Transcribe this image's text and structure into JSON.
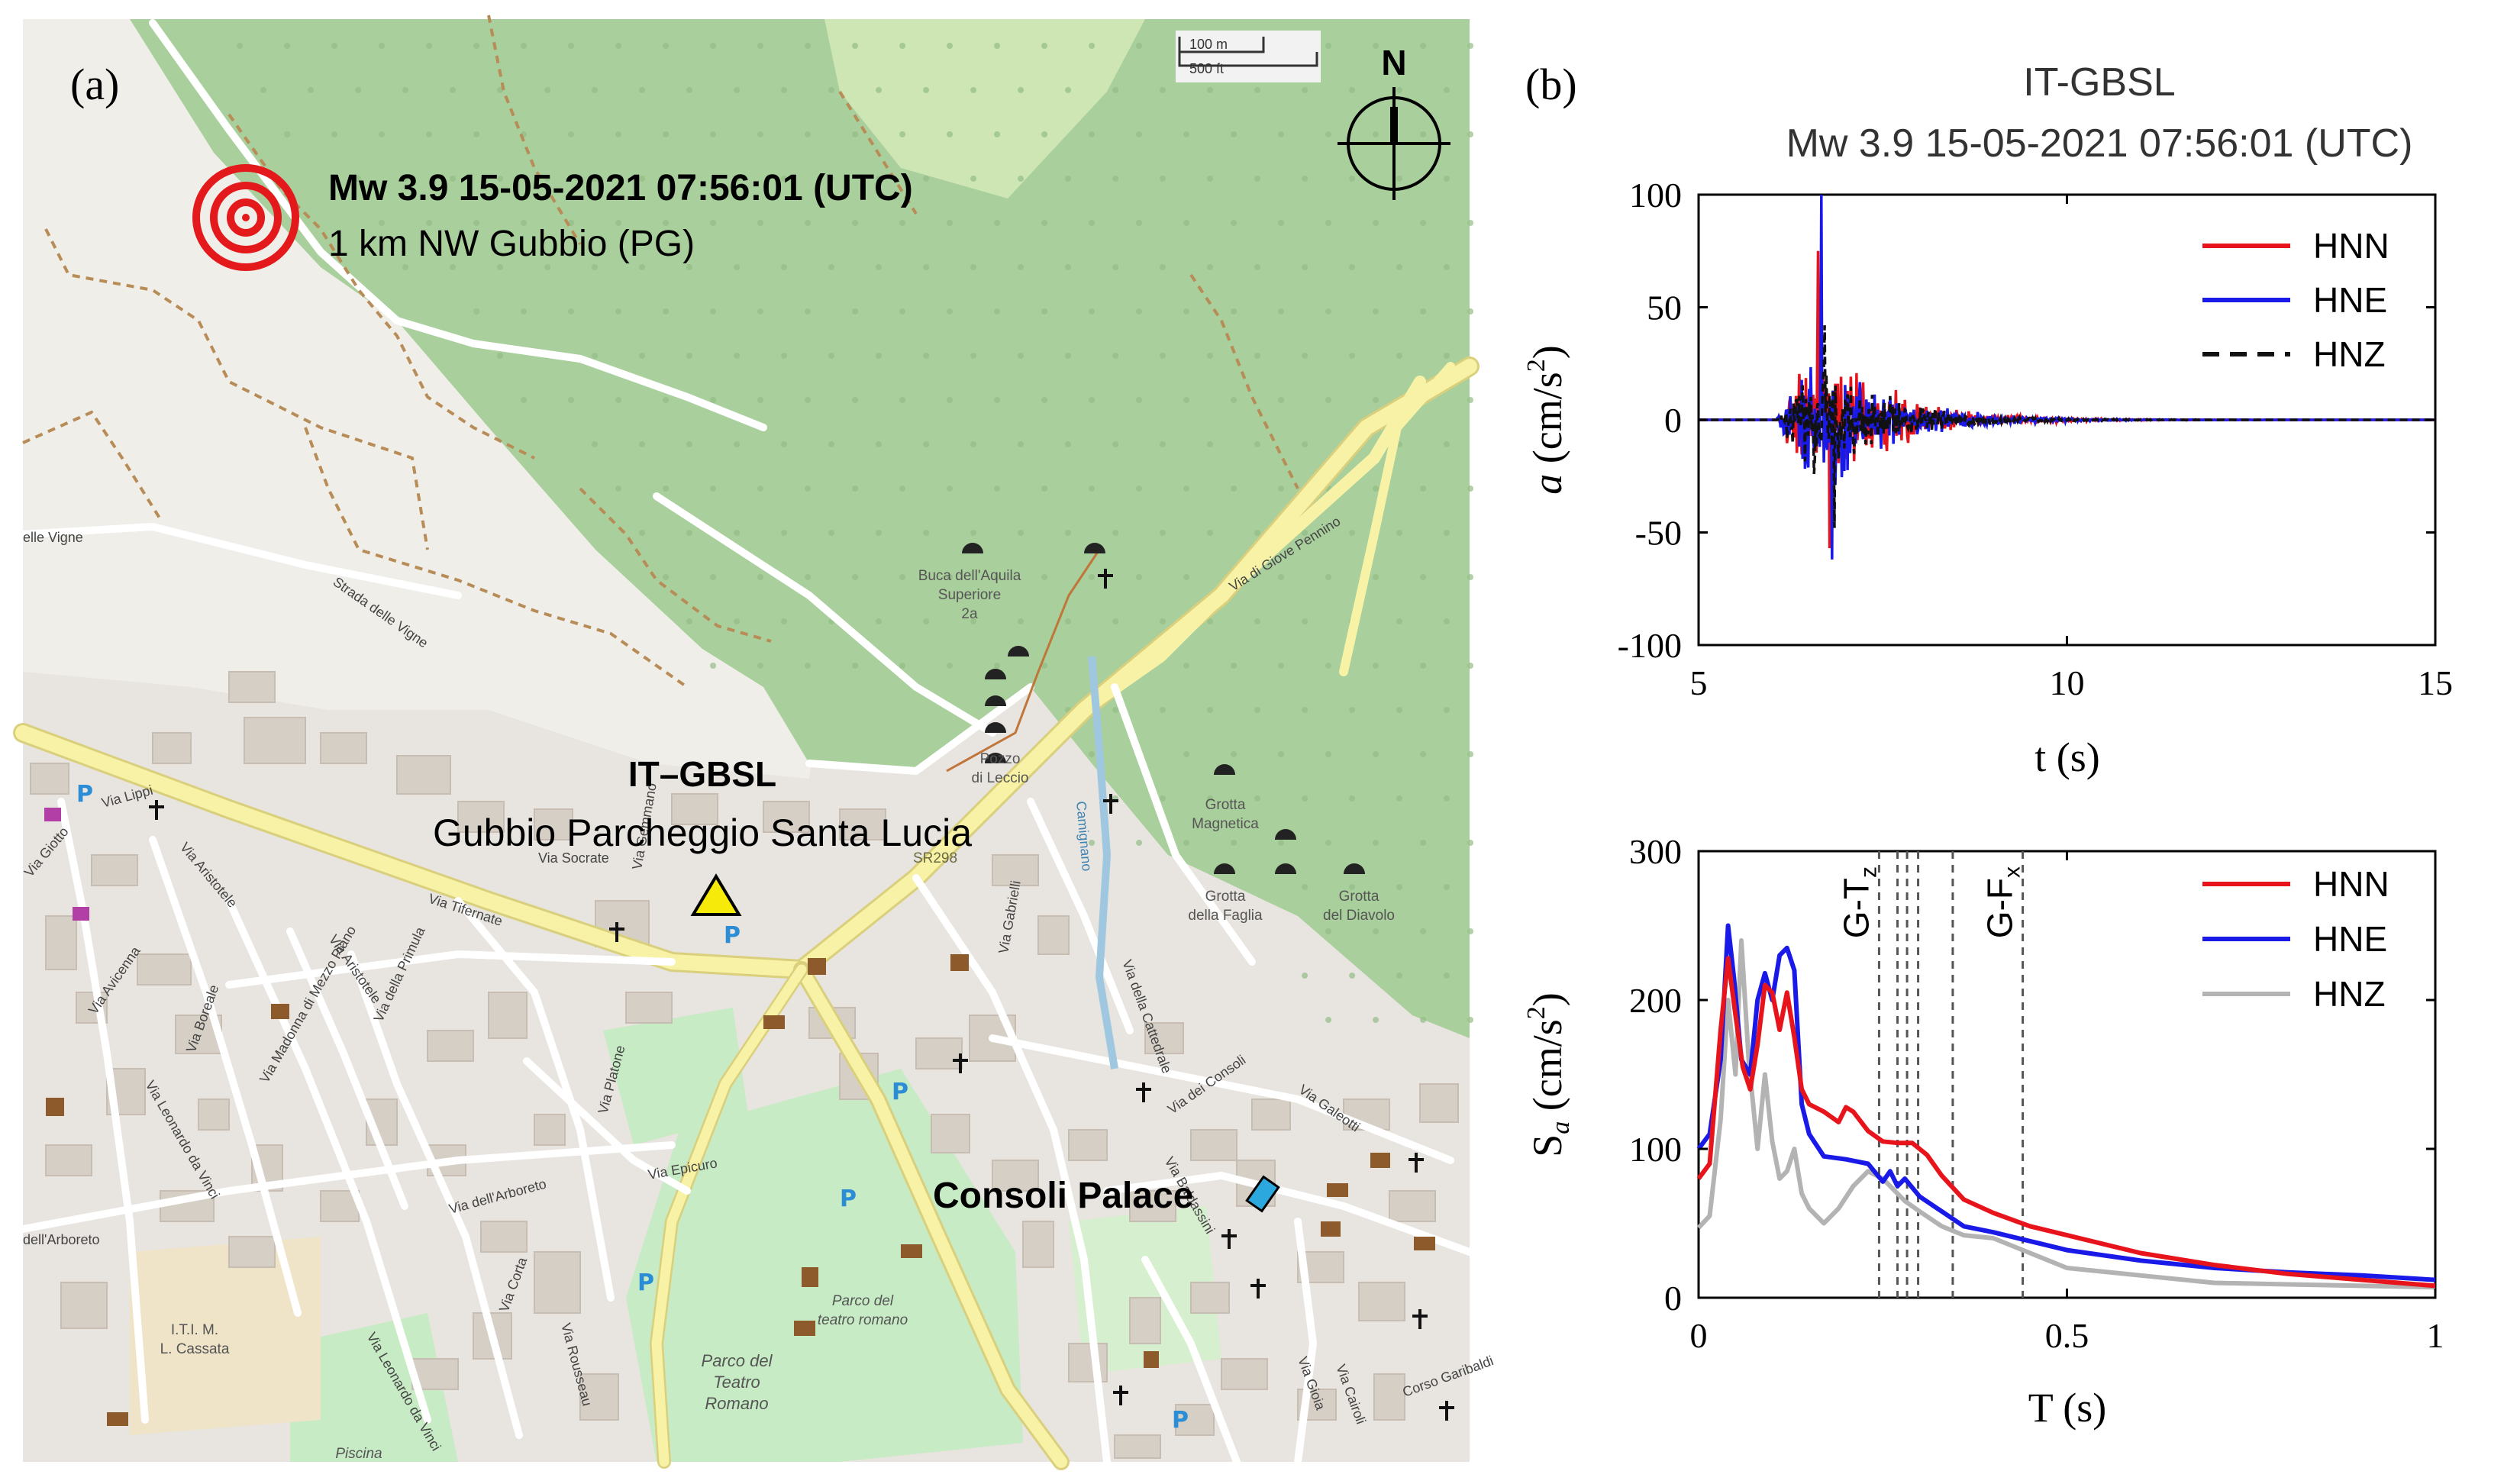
{
  "panel_a": {
    "label": "(a)",
    "event_title": "Mw 3.9 15-05-2021 07:56:01 (UTC)",
    "event_location": "1 km NW Gubbio (PG)",
    "station_code": "IT–GBSL",
    "station_name": "Gubbio Parcheggio Santa Lucia",
    "palace_label": "Consoli Palace",
    "north_label": "N",
    "scale_m": "100 m",
    "scale_ft": "500 ft",
    "colors": {
      "epicenter": "#e3191b",
      "station": "#f5ea0a",
      "palace": "#2ba8de",
      "forest": "#a9cf9c",
      "park": "#c7ebc4",
      "urban": "#e8e4df"
    },
    "place_names": [
      "Buca dell'Aquila",
      "Superiore",
      "2a",
      "Pozzo",
      "di Leccio",
      "Grotta",
      "Magnetica",
      "Grotta",
      "della Faglia",
      "Grotta",
      "del Diavolo",
      "Parco del",
      "Teatro",
      "Romano",
      "Parco del",
      "teatro romano",
      "I.T.I. M.",
      "L. Cassata",
      "Piscina",
      "SR298"
    ],
    "street_names": [
      "Via di Giove Pennino",
      "Strada delle Vigne",
      "elle Vigne",
      "Via Tifernate",
      "Via Lippi",
      "Via Giotto",
      "Via Aristotele",
      "Via Avicenna",
      "Via Boreale",
      "Via Leonardo da Vinci",
      "Via Madonna di Mezzo Piano",
      "Via Aristotele",
      "Via della Primula",
      "Via Platone",
      "Via Epicuro",
      "Via dell'Arboreto",
      "Via Corta",
      "Via Rousseau",
      "Via Leonardo da Vinci",
      "Via Socrate",
      "Via Gabrielli",
      "Via della Cattedrale",
      "Via dei Consoli",
      "Via Galeotti",
      "Via Baldassini",
      "Via Gioia",
      "Via Cairoli",
      "Corso Garibaldi",
      "Camignano",
      "dell'Arboreto",
      "Via Gemmano"
    ]
  },
  "panel_b": {
    "label": "(b)",
    "title_line1": "IT-GBSL",
    "title_line2": "Mw 3.9 15-05-2021 07:56:01 (UTC)"
  },
  "chart_data": [
    {
      "type": "line",
      "title": "IT-GBSL Mw 3.9 15-05-2021 07:56:01 (UTC)",
      "xlabel": "t (s)",
      "ylabel": "a (cm/s²)",
      "ylabel_parts": {
        "a": "a",
        "unit_open": "(cm/s",
        "exp": "2",
        "unit_close": ")"
      },
      "xlim": [
        5,
        15
      ],
      "ylim": [
        -100,
        100
      ],
      "xticks": [
        5,
        10,
        15
      ],
      "yticks": [
        -100,
        -50,
        0,
        50,
        100
      ],
      "legend_position": "top-right",
      "series": [
        {
          "name": "HNN",
          "color": "#e8141c",
          "dash": "solid",
          "peak": 75,
          "trough": -57,
          "seed": 11,
          "amp": 26
        },
        {
          "name": "HNE",
          "color": "#1a1ae8",
          "dash": "solid",
          "peak": 100,
          "trough": -62,
          "seed": 23,
          "amp": 26
        },
        {
          "name": "HNZ",
          "color": "#111111",
          "dash": "dashed",
          "peak": 42,
          "trough": -48,
          "seed": 37,
          "amp": 20
        }
      ]
    },
    {
      "type": "line",
      "title": "",
      "xlabel": "T (s)",
      "ylabel": "S_a (cm/s²)",
      "ylabel_parts": {
        "s": "S",
        "sub": "a",
        "unit_open": "(cm/s",
        "exp": "2",
        "unit_close": ")"
      },
      "xlim": [
        0,
        1
      ],
      "ylim": [
        0,
        300
      ],
      "xticks": [
        0,
        0.5,
        1
      ],
      "xtick_labels": [
        "0",
        "0.5",
        "1"
      ],
      "yticks": [
        0,
        100,
        200,
        300
      ],
      "legend_position": "top-right",
      "vlines": [
        0.245,
        0.27,
        0.283,
        0.298,
        0.345,
        0.44
      ],
      "annotations": [
        {
          "text": "G-T",
          "sub": "z",
          "x": 0.245
        },
        {
          "text": "G-F",
          "sub": "x",
          "x": 0.44
        }
      ],
      "series": [
        {
          "name": "HNN",
          "color": "#e8141c",
          "x": [
            0.0,
            0.015,
            0.03,
            0.04,
            0.05,
            0.06,
            0.07,
            0.08,
            0.09,
            0.1,
            0.11,
            0.12,
            0.13,
            0.14,
            0.15,
            0.17,
            0.19,
            0.2,
            0.21,
            0.23,
            0.25,
            0.27,
            0.29,
            0.31,
            0.33,
            0.36,
            0.4,
            0.45,
            0.5,
            0.6,
            0.7,
            0.8,
            0.9,
            1.0
          ],
          "y": [
            80,
            90,
            180,
            228,
            190,
            155,
            140,
            170,
            210,
            205,
            180,
            205,
            175,
            140,
            130,
            125,
            118,
            128,
            125,
            112,
            105,
            104,
            104,
            96,
            82,
            66,
            57,
            48,
            42,
            30,
            22,
            16,
            12,
            8
          ]
        },
        {
          "name": "HNE",
          "color": "#1a1ae8",
          "x": [
            0.0,
            0.015,
            0.03,
            0.04,
            0.048,
            0.058,
            0.07,
            0.08,
            0.09,
            0.1,
            0.11,
            0.12,
            0.13,
            0.14,
            0.15,
            0.17,
            0.2,
            0.23,
            0.25,
            0.26,
            0.27,
            0.28,
            0.3,
            0.33,
            0.36,
            0.4,
            0.45,
            0.5,
            0.6,
            0.7,
            0.8,
            0.9,
            1.0
          ],
          "y": [
            100,
            110,
            160,
            250,
            215,
            160,
            150,
            200,
            218,
            200,
            230,
            235,
            220,
            130,
            110,
            95,
            93,
            90,
            78,
            85,
            75,
            80,
            68,
            58,
            48,
            44,
            38,
            32,
            25,
            20,
            17,
            15,
            12
          ]
        },
        {
          "name": "HNZ",
          "color": "#b3b3b3",
          "x": [
            0.0,
            0.015,
            0.03,
            0.04,
            0.05,
            0.058,
            0.068,
            0.08,
            0.09,
            0.1,
            0.11,
            0.12,
            0.13,
            0.14,
            0.15,
            0.17,
            0.19,
            0.21,
            0.23,
            0.25,
            0.27,
            0.28,
            0.3,
            0.33,
            0.36,
            0.4,
            0.45,
            0.5,
            0.6,
            0.7,
            0.8,
            0.9,
            1.0
          ],
          "y": [
            47,
            55,
            120,
            200,
            150,
            240,
            160,
            100,
            150,
            105,
            80,
            85,
            100,
            70,
            60,
            50,
            60,
            75,
            85,
            80,
            70,
            65,
            58,
            48,
            42,
            40,
            30,
            20,
            15,
            10,
            9,
            8,
            7
          ]
        }
      ]
    }
  ]
}
